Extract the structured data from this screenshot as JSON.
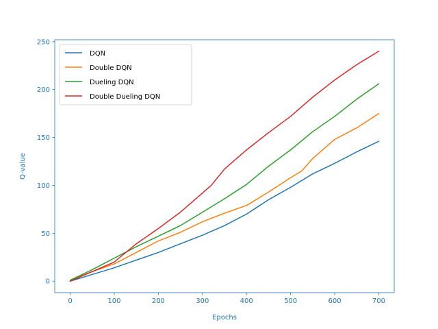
{
  "chart_data": {
    "type": "line",
    "title": "",
    "xlabel": "Epochs",
    "ylabel": "Q-value",
    "xlim": [
      -35,
      735
    ],
    "ylim": [
      -12,
      252
    ],
    "xticks": [
      0,
      100,
      200,
      300,
      400,
      500,
      600,
      700
    ],
    "yticks": [
      0,
      50,
      100,
      150,
      200,
      250
    ],
    "grid": false,
    "legend_position": "top-left",
    "axis_color": "#1f77b4",
    "series": [
      {
        "name": "DQN",
        "color": "#1f77b4",
        "x": [
          0,
          50,
          100,
          150,
          200,
          250,
          300,
          350,
          400,
          450,
          500,
          550,
          600,
          650,
          700
        ],
        "y": [
          0,
          7,
          14,
          22,
          30,
          39,
          48,
          58,
          70,
          85,
          98,
          112,
          123,
          135,
          146
        ]
      },
      {
        "name": "Double DQN",
        "color": "#ff7f0e",
        "x": [
          0,
          50,
          100,
          150,
          200,
          250,
          300,
          350,
          400,
          450,
          500,
          525,
          550,
          600,
          650,
          700
        ],
        "y": [
          1,
          10,
          18,
          30,
          42,
          51,
          62,
          71,
          79,
          93,
          108,
          115,
          128,
          148,
          160,
          175
        ]
      },
      {
        "name": "Dueling DQN",
        "color": "#2ca02c",
        "x": [
          0,
          50,
          100,
          150,
          200,
          250,
          300,
          350,
          400,
          450,
          500,
          550,
          600,
          650,
          700
        ],
        "y": [
          1,
          12,
          24,
          36,
          47,
          58,
          72,
          86,
          101,
          120,
          137,
          156,
          172,
          190,
          206
        ]
      },
      {
        "name": "Double Dueling DQN",
        "color": "#d62728",
        "x": [
          0,
          50,
          100,
          150,
          200,
          250,
          300,
          320,
          350,
          400,
          450,
          500,
          550,
          600,
          650,
          700
        ],
        "y": [
          0,
          10,
          20,
          39,
          55,
          72,
          92,
          100,
          117,
          137,
          155,
          172,
          192,
          210,
          226,
          240
        ]
      }
    ]
  }
}
